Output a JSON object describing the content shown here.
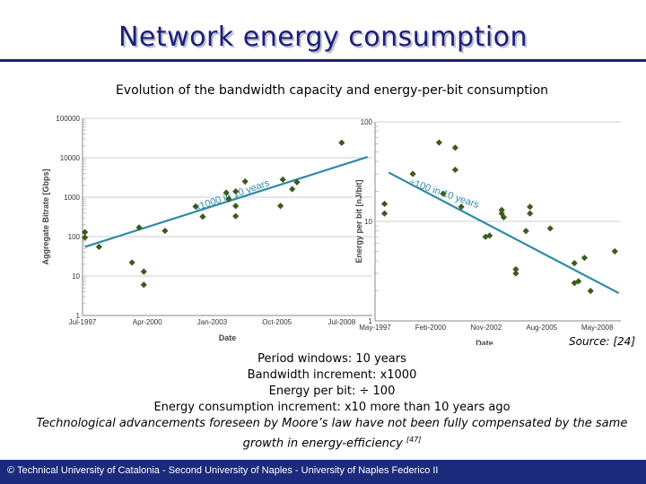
{
  "slide": {
    "title": "Network energy consumption",
    "subtitle": "Evolution of the bandwidth capacity and energy-per-bit consumption",
    "source": "Source: [24]",
    "bullets": [
      "Period windows: 10 years",
      "Bandwidth increment: x1000",
      "Energy per bit: ÷ 100",
      "Energy consumption increment: x10 more than 10 years ago",
      "Technological advancements foreseen by Moore’s law have not been fully compensated by the same growth in energy-efficiency"
    ],
    "bullet_ref": "[47]",
    "footer": "© Technical University of Catalonia - Second University of Naples - University of Naples Federico II"
  },
  "colors": {
    "title": "#1b1f7a",
    "trend": "#2e8aa8",
    "marker": "#3c5a1e",
    "footer_bg": "#1b2a7a"
  },
  "chart_data": [
    {
      "type": "scatter",
      "xlabel": "Date",
      "ylabel": "Aggregate Bitrate [Gbps]",
      "yscale": "log",
      "ylim": [
        1,
        100000
      ],
      "xlim": [
        1997.5,
        2009.8
      ],
      "xticks": [
        {
          "label": "Jul-1997",
          "x": 1997.5
        },
        {
          "label": "Apr-2000",
          "x": 2000.25
        },
        {
          "label": "Jan-2003",
          "x": 2003.0
        },
        {
          "label": "Oct-2005",
          "x": 2005.75
        },
        {
          "label": "Jul-2008",
          "x": 2008.5
        }
      ],
      "yticks": [
        {
          "label": "1",
          "y": 1
        },
        {
          "label": "10",
          "y": 10
        },
        {
          "label": "100",
          "y": 100
        },
        {
          "label": "1000",
          "y": 1000
        },
        {
          "label": "10000",
          "y": 10000
        },
        {
          "label": "100000",
          "y": 100000
        }
      ],
      "points": [
        [
          1997.6,
          130
        ],
        [
          1997.6,
          95
        ],
        [
          1998.2,
          55
        ],
        [
          1999.6,
          22
        ],
        [
          1999.9,
          170
        ],
        [
          2000.1,
          13
        ],
        [
          2000.1,
          6
        ],
        [
          2001.0,
          140
        ],
        [
          2002.3,
          580
        ],
        [
          2002.6,
          320
        ],
        [
          2003.6,
          1300
        ],
        [
          2003.7,
          900
        ],
        [
          2004.0,
          1400
        ],
        [
          2004.0,
          330
        ],
        [
          2004.0,
          600
        ],
        [
          2004.4,
          2500
        ],
        [
          2005.9,
          600
        ],
        [
          2006.0,
          2800
        ],
        [
          2006.4,
          1600
        ],
        [
          2006.6,
          2400
        ],
        [
          2008.5,
          24000
        ]
      ],
      "trend": {
        "from": [
          1997.6,
          55
        ],
        "to": [
          2009.6,
          10500
        ]
      },
      "annotation": "x1000 in 10 years"
    },
    {
      "type": "scatter",
      "xlabel": "Date",
      "ylabel": "Energy per bit [nJ/bit]",
      "yscale": "log",
      "ylim": [
        1,
        100
      ],
      "xlim": [
        1997.33,
        2009.5
      ],
      "xticks": [
        {
          "label": "May-1997",
          "x": 1997.33
        },
        {
          "label": "Feb-2000",
          "x": 2000.08
        },
        {
          "label": "Nov-2002",
          "x": 2002.83
        },
        {
          "label": "Aug-2005",
          "x": 2005.58
        },
        {
          "label": "May-2008",
          "x": 2008.33
        }
      ],
      "yticks": [
        {
          "label": "1",
          "y": 1
        },
        {
          "label": "10",
          "y": 10
        },
        {
          "label": "100",
          "y": 100
        }
      ],
      "points": [
        [
          1997.8,
          15
        ],
        [
          1997.8,
          12
        ],
        [
          1999.2,
          30
        ],
        [
          2000.5,
          62
        ],
        [
          2000.7,
          19
        ],
        [
          2001.3,
          55
        ],
        [
          2001.3,
          33
        ],
        [
          2001.6,
          14
        ],
        [
          2002.8,
          7
        ],
        [
          2003.0,
          7.2
        ],
        [
          2003.6,
          13
        ],
        [
          2003.6,
          12
        ],
        [
          2003.7,
          11
        ],
        [
          2004.3,
          3.3
        ],
        [
          2004.3,
          3.0
        ],
        [
          2004.8,
          8
        ],
        [
          2005.0,
          14
        ],
        [
          2005.0,
          12
        ],
        [
          2006.0,
          8.5
        ],
        [
          2007.2,
          3.8
        ],
        [
          2007.2,
          2.4
        ],
        [
          2007.4,
          2.5
        ],
        [
          2007.7,
          4.3
        ],
        [
          2008.0,
          2.0
        ],
        [
          2009.2,
          5.0
        ]
      ],
      "trend": {
        "from": [
          1998.0,
          31
        ],
        "to": [
          2009.4,
          1.9
        ]
      },
      "annotation": "÷100 in 10 years"
    }
  ]
}
